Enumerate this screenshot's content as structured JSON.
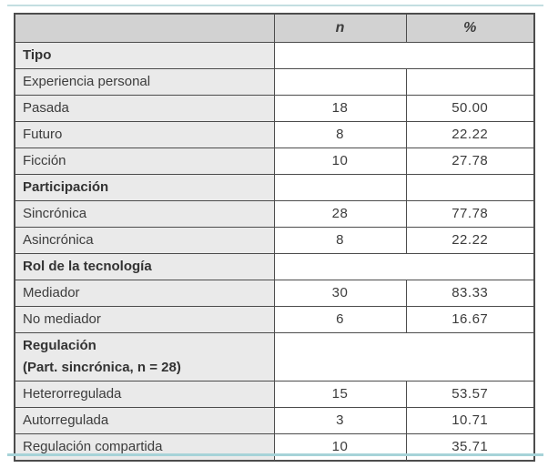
{
  "colors": {
    "rule_top": "#c3dee1",
    "rule_bottom": "#a6d3d8",
    "table_border": "#4c4c4c",
    "header_bg": "#d2d2d2",
    "label_bg": "#eaeaea"
  },
  "table": {
    "col_label": "",
    "col_n": "n",
    "col_pct": "%",
    "rows": [
      {
        "label": "Tipo",
        "bold": true,
        "merged": true,
        "n": "",
        "pct": ""
      },
      {
        "label": "Experiencia personal",
        "bold": false,
        "merged": false,
        "n": "",
        "pct": ""
      },
      {
        "label": "Pasada",
        "bold": false,
        "merged": false,
        "n": "18",
        "pct": "50.00"
      },
      {
        "label": "Futuro",
        "bold": false,
        "merged": false,
        "n": "8",
        "pct": "22.22"
      },
      {
        "label": "Ficción",
        "bold": false,
        "merged": false,
        "n": "10",
        "pct": "27.78"
      },
      {
        "label": "Participación",
        "bold": true,
        "merged": false,
        "n": "",
        "pct": ""
      },
      {
        "label": "Sincrónica",
        "bold": false,
        "merged": false,
        "n": "28",
        "pct": "77.78"
      },
      {
        "label": "Asincrónica",
        "bold": false,
        "merged": false,
        "n": "8",
        "pct": "22.22"
      },
      {
        "label": "Rol de la tecnología",
        "bold": true,
        "merged": true,
        "n": "",
        "pct": ""
      },
      {
        "label": "Mediador",
        "bold": false,
        "merged": false,
        "n": "30",
        "pct": "83.33"
      },
      {
        "label": "No mediador",
        "bold": false,
        "merged": false,
        "n": "6",
        "pct": "16.67"
      },
      {
        "label": "Regulación",
        "label2": "(Part. sincrónica, n = 28)",
        "bold": true,
        "merged": true,
        "n": "",
        "pct": ""
      },
      {
        "label": "Heterorregulada",
        "bold": false,
        "merged": false,
        "n": "15",
        "pct": "53.57"
      },
      {
        "label": "Autorregulada",
        "bold": false,
        "merged": false,
        "n": "3",
        "pct": "10.71"
      },
      {
        "label": "Regulación compartida",
        "bold": false,
        "merged": false,
        "n": "10",
        "pct": "35.71"
      }
    ]
  }
}
